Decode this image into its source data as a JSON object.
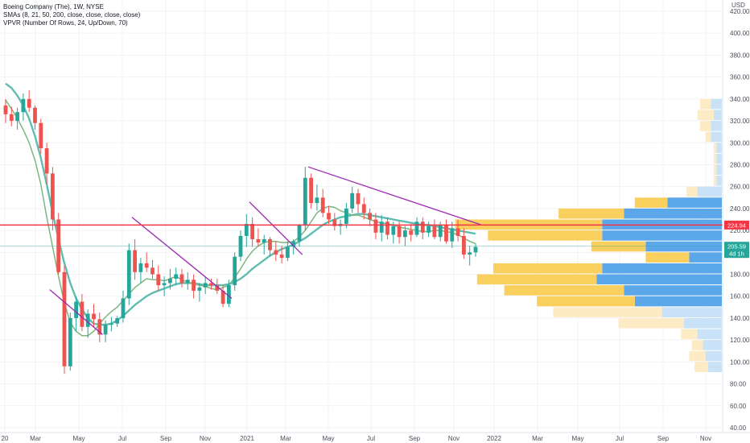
{
  "legend": {
    "title": "Boeing Company (The), 1W, NYSE",
    "sma": "SMAs (8, 21, 50, 200, close, close, close, close)",
    "vpvr": "VPVR (Number Of Rows, 24, Up/Down, 70)"
  },
  "currency_label": "USD",
  "price_badges": {
    "resistance_value": "224.94",
    "last_value": "205.59",
    "countdown": "4d 1h"
  },
  "colors": {
    "up": "#26a69a",
    "down": "#ef5350",
    "sma_fast": "#7cb77f",
    "sma_slow": "#5fbdb0",
    "trendline": "#9c27b0",
    "resistance": "#f23645",
    "vp_up": "#5ba7ea",
    "vp_down": "#f9cf5d",
    "vp_up_light": "#c9e2f8",
    "vp_down_light": "#fcebc4",
    "last_price": "#26a69a"
  },
  "chart_data": {
    "type": "candlestick",
    "title": "Boeing Company (The), 1W, NYSE",
    "y_axis": {
      "unit": "USD",
      "ylim": [
        37,
        422
      ],
      "ticks": [
        40,
        60,
        80,
        100,
        120,
        140,
        160,
        180,
        200,
        220,
        240,
        260,
        280,
        300,
        320,
        340,
        360,
        380,
        400,
        420
      ]
    },
    "x_axis": {
      "ticks": [
        "20",
        "Mar",
        "May",
        "Jul",
        "Sep",
        "Nov",
        "2021",
        "Mar",
        "May",
        "Jul",
        "Sep",
        "Nov",
        "2022",
        "Mar",
        "May",
        "Jul",
        "Sep",
        "Nov"
      ]
    },
    "grid": true,
    "candles": [
      [
        334,
        340,
        318,
        326
      ],
      [
        326,
        333,
        315,
        320
      ],
      [
        320,
        332,
        312,
        328
      ],
      [
        328,
        345,
        320,
        340
      ],
      [
        340,
        348,
        328,
        332
      ],
      [
        332,
        334,
        312,
        318
      ],
      [
        318,
        322,
        290,
        295
      ],
      [
        295,
        300,
        262,
        272
      ],
      [
        272,
        278,
        220,
        230
      ],
      [
        230,
        236,
        180,
        182
      ],
      [
        182,
        188,
        89,
        96
      ],
      [
        96,
        145,
        92,
        140
      ],
      [
        140,
        160,
        128,
        155
      ],
      [
        155,
        162,
        128,
        132
      ],
      [
        132,
        148,
        122,
        144
      ],
      [
        144,
        153,
        132,
        139
      ],
      [
        139,
        145,
        118,
        125
      ],
      [
        125,
        138,
        118,
        134
      ],
      [
        134,
        141,
        128,
        135
      ],
      [
        135,
        142,
        132,
        140
      ],
      [
        140,
        165,
        136,
        158
      ],
      [
        158,
        208,
        152,
        202
      ],
      [
        202,
        212,
        175,
        182
      ],
      [
        182,
        195,
        172,
        190
      ],
      [
        190,
        200,
        182,
        186
      ],
      [
        186,
        193,
        176,
        180
      ],
      [
        180,
        188,
        165,
        170
      ],
      [
        170,
        178,
        160,
        172
      ],
      [
        172,
        185,
        166,
        176
      ],
      [
        176,
        186,
        170,
        180
      ],
      [
        180,
        185,
        168,
        172
      ],
      [
        172,
        182,
        166,
        175
      ],
      [
        175,
        180,
        158,
        165
      ],
      [
        165,
        172,
        155,
        168
      ],
      [
        168,
        178,
        162,
        172
      ],
      [
        172,
        176,
        166,
        170
      ],
      [
        170,
        176,
        162,
        165
      ],
      [
        165,
        170,
        150,
        153
      ],
      [
        153,
        175,
        150,
        170
      ],
      [
        170,
        200,
        165,
        196
      ],
      [
        196,
        220,
        192,
        215
      ],
      [
        215,
        235,
        205,
        226
      ],
      [
        226,
        232,
        205,
        212
      ],
      [
        212,
        222,
        205,
        209
      ],
      [
        209,
        216,
        198,
        212
      ],
      [
        212,
        214,
        196,
        202
      ],
      [
        202,
        210,
        192,
        198
      ],
      [
        198,
        206,
        190,
        195
      ],
      [
        195,
        210,
        192,
        205
      ],
      [
        205,
        212,
        198,
        210
      ],
      [
        210,
        226,
        205,
        225
      ],
      [
        225,
        278,
        220,
        268
      ],
      [
        268,
        272,
        240,
        245
      ],
      [
        245,
        262,
        238,
        250
      ],
      [
        250,
        258,
        232,
        236
      ],
      [
        236,
        242,
        226,
        230
      ],
      [
        230,
        236,
        220,
        224
      ],
      [
        224,
        230,
        216,
        226
      ],
      [
        226,
        245,
        222,
        240
      ],
      [
        240,
        260,
        236,
        254
      ],
      [
        254,
        258,
        236,
        244
      ],
      [
        244,
        250,
        230,
        236
      ],
      [
        236,
        240,
        224,
        230
      ],
      [
        230,
        236,
        212,
        218
      ],
      [
        218,
        234,
        210,
        228
      ],
      [
        228,
        232,
        212,
        216
      ],
      [
        216,
        228,
        208,
        224
      ],
      [
        224,
        228,
        208,
        214
      ],
      [
        214,
        224,
        206,
        220
      ],
      [
        220,
        226,
        210,
        216
      ],
      [
        216,
        232,
        214,
        228
      ],
      [
        228,
        232,
        212,
        218
      ],
      [
        218,
        228,
        214,
        224
      ],
      [
        224,
        230,
        212,
        214
      ],
      [
        214,
        228,
        210,
        225
      ],
      [
        225,
        230,
        208,
        210
      ],
      [
        210,
        228,
        204,
        222
      ],
      [
        222,
        230,
        210,
        215
      ],
      [
        215,
        222,
        194,
        198
      ],
      [
        198,
        206,
        188,
        200
      ],
      [
        200,
        208,
        196,
        205
      ]
    ],
    "sma8": [
      339,
      331,
      322,
      312,
      300,
      284,
      262,
      232,
      205,
      178,
      154,
      136,
      128,
      124,
      124,
      128,
      135,
      141,
      146,
      150,
      156,
      162,
      168,
      172,
      176,
      175,
      175,
      174,
      176,
      178,
      175,
      173,
      171,
      170,
      169,
      167,
      166,
      168,
      170,
      177,
      185,
      194,
      201,
      206,
      209,
      210,
      210,
      209,
      209,
      210,
      214,
      220,
      228,
      236,
      240,
      242,
      241,
      238,
      236,
      234,
      234,
      232,
      230,
      228,
      227,
      226,
      225,
      223,
      222,
      221,
      220,
      219,
      219,
      220,
      220,
      219,
      218,
      216,
      213,
      210,
      208
    ],
    "sma21": [
      354,
      350,
      343,
      334,
      322,
      306,
      286,
      262,
      236,
      212,
      190,
      172,
      158,
      148,
      140,
      135,
      134,
      134,
      135,
      138,
      142,
      147,
      152,
      156,
      160,
      163,
      165,
      167,
      169,
      171,
      172,
      172,
      172,
      171,
      170,
      170,
      170,
      170,
      171,
      173,
      176,
      180,
      185,
      189,
      193,
      197,
      200,
      203,
      205,
      207,
      210,
      213,
      217,
      221,
      225,
      228,
      230,
      232,
      233,
      234,
      235,
      235,
      234,
      233,
      232,
      231,
      230,
      229,
      228,
      227,
      226,
      225,
      225,
      224,
      223,
      222,
      221,
      220,
      219,
      218,
      217
    ]
  },
  "trendlines": [
    {
      "i1": 7.5,
      "p1": 166,
      "i2": 16.5,
      "p2": 125
    },
    {
      "i1": 21.5,
      "p1": 232,
      "i2": 38.5,
      "p2": 158
    },
    {
      "i1": 41.5,
      "p1": 246,
      "i2": 50.5,
      "p2": 198
    },
    {
      "i1": 51.5,
      "p1": 278,
      "i2": 81,
      "p2": 225
    }
  ],
  "resistance_level": 224.94,
  "last_price": 205.59,
  "volume_profile": {
    "row_height": 10,
    "rows": [
      {
        "p": 95,
        "up": 0.05,
        "down": 0.05
      },
      {
        "p": 105,
        "up": 0.06,
        "down": 0.06
      },
      {
        "p": 115,
        "up": 0.07,
        "down": 0.04
      },
      {
        "p": 125,
        "up": 0.09,
        "down": 0.06
      },
      {
        "p": 135,
        "up": 0.14,
        "down": 0.24
      },
      {
        "p": 145,
        "up": 0.22,
        "down": 0.4
      },
      {
        "p": 155,
        "up": 0.32,
        "down": 0.36
      },
      {
        "p": 165,
        "up": 0.36,
        "down": 0.44
      },
      {
        "p": 175,
        "up": 0.46,
        "down": 0.44
      },
      {
        "p": 185,
        "up": 0.44,
        "down": 0.4
      },
      {
        "p": 195,
        "up": 0.12,
        "down": 0.16
      },
      {
        "p": 205,
        "up": 0.28,
        "down": 0.2
      },
      {
        "p": 215,
        "up": 0.44,
        "down": 0.42
      },
      {
        "p": 225,
        "up": 0.44,
        "down": 0.54
      },
      {
        "p": 235,
        "up": 0.36,
        "down": 0.24
      },
      {
        "p": 245,
        "up": 0.2,
        "down": 0.12
      },
      {
        "p": 255,
        "up": 0.09,
        "down": 0.04
      },
      {
        "p": 265,
        "up": 0.02,
        "down": 0.01
      },
      {
        "p": 275,
        "up": 0.02,
        "down": 0.01
      },
      {
        "p": 285,
        "up": 0.02,
        "down": 0.01
      },
      {
        "p": 295,
        "up": 0.02,
        "down": 0.01
      },
      {
        "p": 305,
        "up": 0.04,
        "down": 0.02
      },
      {
        "p": 315,
        "up": 0.04,
        "down": 0.04
      },
      {
        "p": 325,
        "up": 0.03,
        "down": 0.06
      },
      {
        "p": 335,
        "up": 0.04,
        "down": 0.04
      }
    ]
  }
}
